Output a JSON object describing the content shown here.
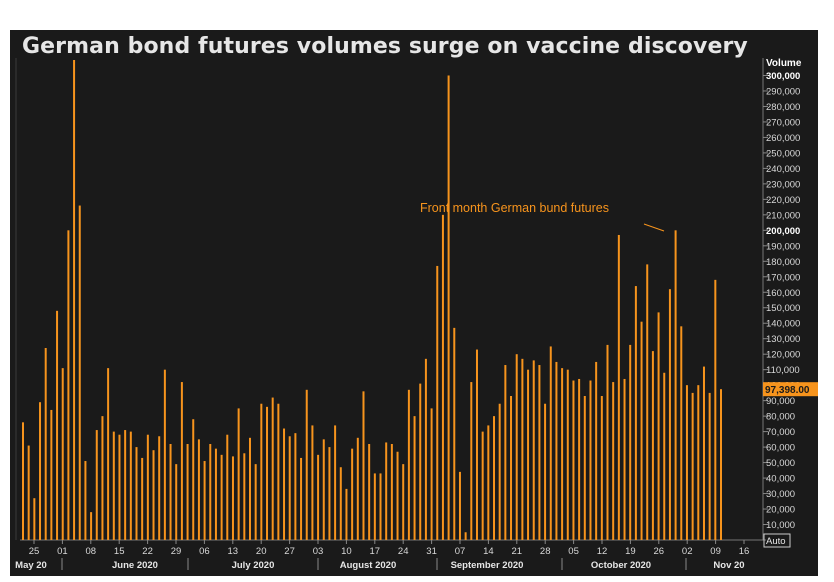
{
  "chart_data": {
    "type": "bar",
    "title": "German bond futures volumes surge on vaccine discovery",
    "ylabel": "Volume",
    "ylim": [
      0,
      310000
    ],
    "yticks": [
      10000,
      20000,
      30000,
      40000,
      50000,
      60000,
      70000,
      80000,
      90000,
      100000,
      110000,
      120000,
      130000,
      140000,
      150000,
      160000,
      170000,
      180000,
      190000,
      200000,
      210000,
      220000,
      230000,
      240000,
      250000,
      260000,
      270000,
      280000,
      290000,
      300000
    ],
    "ytick_labels": [
      "10,000",
      "20,000",
      "30,000",
      "40,000",
      "50,000",
      "60,000",
      "70,000",
      "80,000",
      "90,000",
      "100,000",
      "110,000",
      "120,000",
      "130,000",
      "140,000",
      "150,000",
      "160,000",
      "170,000",
      "180,000",
      "190,000",
      "200,000",
      "210,000",
      "220,000",
      "230,000",
      "240,000",
      "250,000",
      "260,000",
      "270,000",
      "280,000",
      "290,000",
      "300,000"
    ],
    "bold_ticks": [
      "200,000",
      "300,000"
    ],
    "values": [
      76000,
      61000,
      27000,
      89000,
      124000,
      84000,
      148000,
      111000,
      200000,
      310000,
      216000,
      51000,
      18000,
      71000,
      80000,
      111000,
      70000,
      68000,
      71000,
      70000,
      60000,
      53000,
      68000,
      58000,
      67000,
      110000,
      62000,
      49000,
      102000,
      62000,
      78000,
      65000,
      51000,
      62000,
      59000,
      55000,
      68000,
      54000,
      85000,
      56000,
      66000,
      49000,
      88000,
      86000,
      92000,
      88000,
      72000,
      67000,
      69000,
      53000,
      97000,
      74000,
      55000,
      65000,
      60000,
      74000,
      47000,
      33000,
      59000,
      66000,
      96000,
      62000,
      43000,
      43000,
      63000,
      62000,
      57000,
      49000,
      97000,
      80000,
      101000,
      117000,
      85000,
      177000,
      210000,
      300000,
      137000,
      44000,
      5000,
      102000,
      123000,
      70000,
      74000,
      80000,
      88000,
      113000,
      93000,
      120000,
      117000,
      110000,
      116000,
      113000,
      88000,
      125000,
      115000,
      111000,
      110000,
      103000,
      104000,
      93000,
      103000,
      115000,
      93000,
      126000,
      102000,
      197000,
      104000,
      126000,
      164000,
      141000,
      178000,
      122000,
      147000,
      108000,
      162000,
      200000,
      138000,
      100000,
      95000,
      100000,
      112000,
      95000,
      168000,
      97398
    ],
    "day_ticks": [
      "25",
      "01",
      "08",
      "15",
      "22",
      "29",
      "06",
      "13",
      "20",
      "27",
      "03",
      "10",
      "17",
      "24",
      "31",
      "07",
      "14",
      "21",
      "28",
      "05",
      "12",
      "19",
      "26",
      "02",
      "09",
      "16"
    ],
    "month_labels": [
      "May 20",
      "June 2020",
      "July 2020",
      "August 2020",
      "September 2020",
      "October 2020",
      "Nov 20"
    ],
    "last_value_label": "97,398.00",
    "annotation": "Front month German bund futures",
    "auto_label": "Auto",
    "colors": {
      "bar": "#f7941d",
      "background": "#1a1a1a",
      "axis_text": "#d9d9d9",
      "title": "#e6e6e6",
      "annotation": "#f7941d",
      "value_badge": "#f7941d"
    }
  }
}
